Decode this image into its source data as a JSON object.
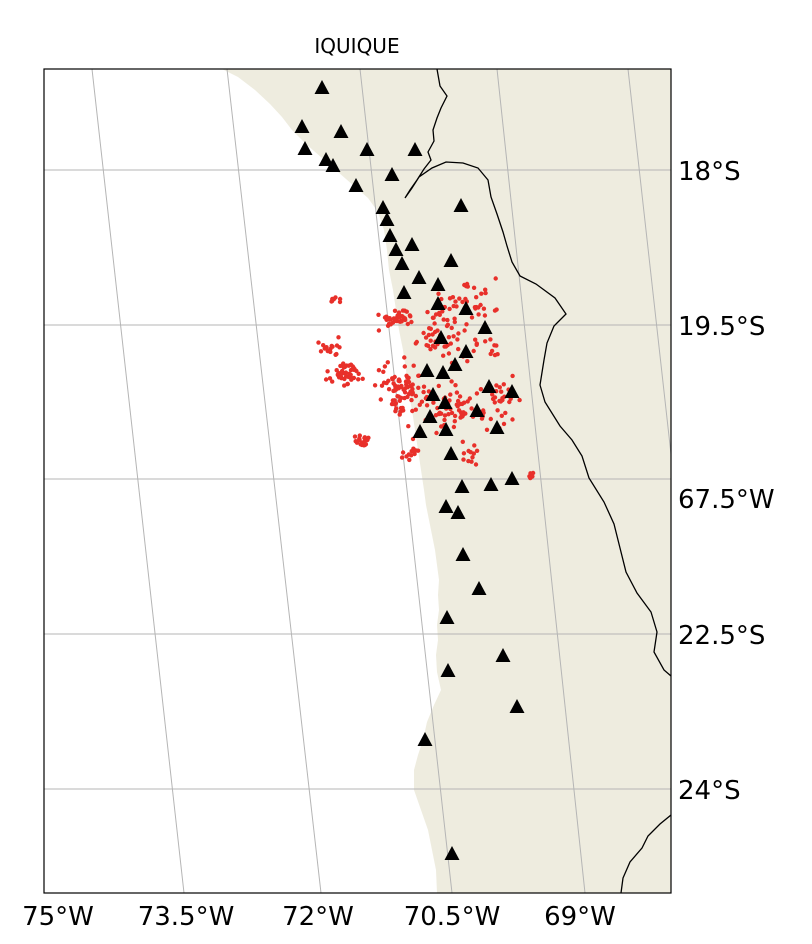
{
  "map": {
    "title": "IQUIQUE",
    "colors": {
      "ocean": "#ffffff",
      "land": "#eeecdf",
      "border": "#000000",
      "graticule": "#b5b5b5",
      "station": "#000000",
      "event": "#e8302a"
    },
    "lat_labels": [
      "18°S",
      "19.5°S",
      "67.5°W",
      "22.5°S",
      "24°S"
    ],
    "lon_labels": [
      "75°W",
      "73.5°W",
      "72°W",
      "70.5°W",
      "69°W"
    ],
    "layers": [
      {
        "name": "stations",
        "marker": "black triangle"
      },
      {
        "name": "events",
        "marker": "red dot"
      }
    ],
    "station_count": 62,
    "event_count": 420
  }
}
